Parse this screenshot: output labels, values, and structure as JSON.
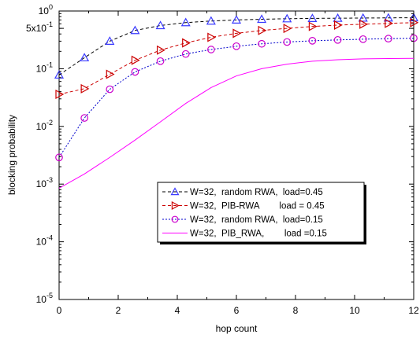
{
  "chart_data": {
    "type": "line",
    "xlabel": "hop count",
    "ylabel": "blocking probability",
    "xlim": [
      0,
      12
    ],
    "ylim": [
      1e-05,
      1
    ],
    "yscale": "log",
    "grid": false,
    "legend_placement": "center-right",
    "x_ticks": [
      0,
      2,
      4,
      6,
      8,
      10,
      12
    ],
    "x_tick_labels": [
      "0",
      "2",
      "4",
      "6",
      "8",
      "10",
      "12"
    ],
    "y_ticks": [
      1e-05,
      0.0001,
      0.001,
      0.01,
      0.1,
      0.5,
      1
    ],
    "y_tick_labels": [
      {
        "base": "10",
        "exp": "-5"
      },
      {
        "base": "10",
        "exp": "-4"
      },
      {
        "base": "10",
        "exp": "-3"
      },
      {
        "base": "10",
        "exp": "-2"
      },
      {
        "base": "10",
        "exp": "-1"
      },
      {
        "base": "5x10",
        "exp": "-1"
      },
      {
        "base": "10",
        "exp": "0"
      }
    ],
    "series": [
      {
        "name": "W=32,  random RWA,  load=0.45",
        "color": "#000000",
        "dash": "4,3",
        "marker": "triangle-up",
        "marker_color": "#3a3aff",
        "x": [
          0,
          0.857,
          1.714,
          2.571,
          3.429,
          4.286,
          5.143,
          6,
          6.857,
          7.714,
          8.571,
          9.429,
          10.286,
          11.143,
          12
        ],
        "values": [
          0.078,
          0.155,
          0.3,
          0.46,
          0.56,
          0.63,
          0.67,
          0.7,
          0.72,
          0.735,
          0.745,
          0.75,
          0.755,
          0.76,
          0.765
        ]
      },
      {
        "name": "W=32,  PIB-RWA        load = 0.45",
        "color": "#cc0000",
        "dash": "4,3",
        "marker": "triangle-right",
        "marker_color": "#cc0000",
        "x": [
          0,
          0.857,
          1.714,
          2.571,
          3.429,
          4.286,
          5.143,
          6,
          6.857,
          7.714,
          8.571,
          9.429,
          10.286,
          11.143,
          12
        ],
        "values": [
          0.036,
          0.045,
          0.08,
          0.14,
          0.21,
          0.28,
          0.35,
          0.41,
          0.46,
          0.5,
          0.54,
          0.57,
          0.59,
          0.61,
          0.63
        ]
      },
      {
        "name": "W=32,  random RWA,  load=0.15",
        "color": "#0000cc",
        "dash": "2,2",
        "marker": "circle",
        "marker_color": "#cc00cc",
        "x": [
          0,
          0.857,
          1.714,
          2.571,
          3.429,
          4.286,
          5.143,
          6,
          6.857,
          7.714,
          8.571,
          9.429,
          10.286,
          11.143,
          12
        ],
        "values": [
          0.0029,
          0.014,
          0.044,
          0.088,
          0.135,
          0.18,
          0.215,
          0.245,
          0.27,
          0.29,
          0.305,
          0.315,
          0.325,
          0.332,
          0.338
        ]
      },
      {
        "name": "W=32,  PIB_RWA,        load =0.15",
        "color": "#ff00ff",
        "dash": "",
        "marker": "none",
        "marker_color": "#ff00ff",
        "x": [
          0,
          0.857,
          1.714,
          2.571,
          3.429,
          4.286,
          5.143,
          6,
          6.857,
          7.714,
          8.571,
          9.429,
          10.286,
          11.143,
          12
        ],
        "values": [
          0.00085,
          0.0015,
          0.0029,
          0.0058,
          0.012,
          0.025,
          0.047,
          0.075,
          0.1,
          0.12,
          0.135,
          0.143,
          0.148,
          0.15,
          0.151
        ]
      }
    ]
  }
}
